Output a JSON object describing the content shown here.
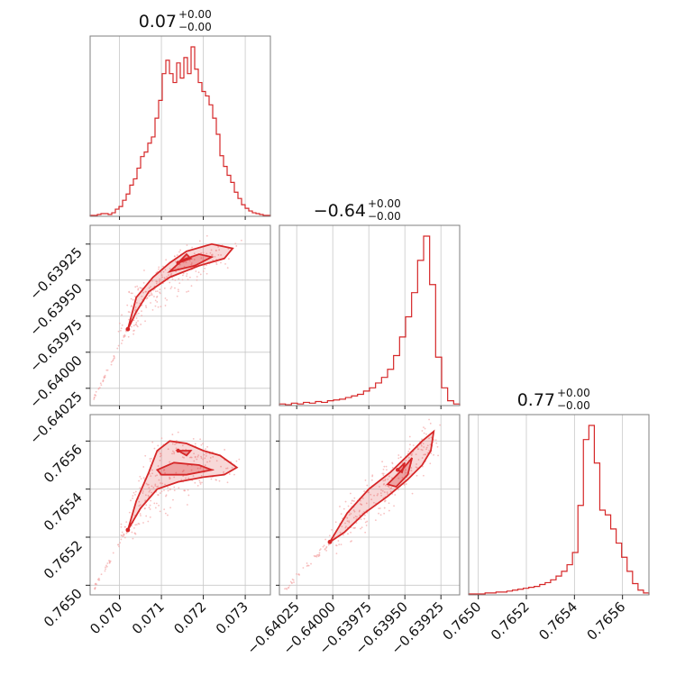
{
  "chart_data": {
    "type": "corner",
    "color": "#d62728",
    "parameters": [
      {
        "title_value": "0.07",
        "err_plus": "+0.00",
        "err_minus": "−0.00",
        "range": [
          0.0693,
          0.0736
        ],
        "ticks": [
          "0.070",
          "0.071",
          "0.072",
          "0.073"
        ],
        "tick_values": [
          0.07,
          0.071,
          0.072,
          0.073
        ]
      },
      {
        "title_value": "−0.64",
        "err_plus": "+0.00",
        "err_minus": "−0.00",
        "range": [
          -0.64037,
          -0.63912
        ],
        "ticks": [
          "−0.64025",
          "−0.64000",
          "−0.63975",
          "−0.63950",
          "−0.63925"
        ],
        "tick_values": [
          -0.64025,
          -0.64,
          -0.63975,
          -0.6395,
          -0.63925
        ]
      },
      {
        "title_value": "0.77",
        "err_plus": "+0.00",
        "err_minus": "−0.00",
        "range": [
          0.76496,
          0.76571
        ],
        "ticks": [
          "0.7650",
          "0.7652",
          "0.7654",
          "0.7656"
        ],
        "tick_values": [
          0.765,
          0.7652,
          0.7654,
          0.7656
        ]
      }
    ],
    "histograms": [
      [
        1,
        1,
        2,
        3,
        3,
        2,
        4,
        8,
        11,
        18,
        25,
        35,
        42,
        54,
        67,
        72,
        82,
        89,
        110,
        130,
        160,
        175,
        160,
        150,
        172,
        155,
        178,
        160,
        190,
        165,
        150,
        140,
        135,
        125,
        110,
        92,
        68,
        56,
        46,
        38,
        27,
        20,
        13,
        9,
        6,
        4,
        3,
        2,
        1,
        1
      ],
      [
        2,
        1,
        3,
        2,
        4,
        3,
        5,
        4,
        6,
        7,
        8,
        10,
        12,
        14,
        18,
        22,
        28,
        35,
        45,
        62,
        85,
        110,
        140,
        180,
        210,
        150,
        60,
        22,
        6,
        2
      ],
      [
        1,
        1,
        1,
        2,
        2,
        3,
        3,
        4,
        5,
        6,
        7,
        8,
        9,
        11,
        13,
        16,
        20,
        25,
        32,
        45,
        95,
        165,
        180,
        140,
        90,
        85,
        70,
        55,
        40,
        25,
        12,
        5,
        2
      ]
    ],
    "contours": {
      "p10": {
        "polygons": [
          [
            [
              0.0702,
              -0.63984
            ],
            [
              0.0704,
              -0.63962
            ],
            [
              0.0708,
              -0.63948
            ],
            [
              0.0712,
              -0.63938
            ],
            [
              0.0716,
              -0.6393
            ],
            [
              0.0722,
              -0.63925
            ],
            [
              0.0727,
              -0.63928
            ],
            [
              0.0725,
              -0.63935
            ],
            [
              0.0719,
              -0.6394
            ],
            [
              0.0712,
              -0.63948
            ],
            [
              0.0707,
              -0.63958
            ],
            [
              0.0704,
              -0.63972
            ],
            [
              0.0702,
              -0.63984
            ]
          ],
          [
            [
              0.0712,
              -0.63944
            ],
            [
              0.0715,
              -0.63936
            ],
            [
              0.0719,
              -0.63932
            ],
            [
              0.0722,
              -0.63934
            ],
            [
              0.0718,
              -0.6394
            ],
            [
              0.0712,
              -0.63944
            ]
          ],
          [
            [
              0.0714,
              -0.63938
            ],
            [
              0.0717,
              -0.63935
            ],
            [
              0.0716,
              -0.63932
            ],
            [
              0.0714,
              -0.63938
            ]
          ]
        ]
      },
      "p20": {
        "polygons": [
          [
            [
              0.0702,
              0.76523
            ],
            [
              0.0704,
              0.76535
            ],
            [
              0.0707,
              0.76547
            ],
            [
              0.0709,
              0.76556
            ],
            [
              0.0712,
              0.7656
            ],
            [
              0.0716,
              0.76559
            ],
            [
              0.072,
              0.76556
            ],
            [
              0.0724,
              0.76554
            ],
            [
              0.0728,
              0.76549
            ],
            [
              0.0725,
              0.76546
            ],
            [
              0.072,
              0.76545
            ],
            [
              0.0714,
              0.76543
            ],
            [
              0.0709,
              0.7654
            ],
            [
              0.0705,
              0.76532
            ],
            [
              0.0702,
              0.76523
            ]
          ],
          [
            [
              0.0709,
              0.76548
            ],
            [
              0.0713,
              0.76551
            ],
            [
              0.0719,
              0.7655
            ],
            [
              0.0722,
              0.76548
            ],
            [
              0.0716,
              0.76546
            ],
            [
              0.071,
              0.76546
            ],
            [
              0.0709,
              0.76548
            ]
          ],
          [
            [
              0.0714,
              0.76556
            ],
            [
              0.0717,
              0.76556
            ],
            [
              0.0716,
              0.76554
            ],
            [
              0.0714,
              0.76556
            ]
          ]
        ]
      },
      "p21": {
        "polygons": [
          [
            [
              -0.64002,
              0.76518
            ],
            [
              -0.6399,
              0.7653
            ],
            [
              -0.63975,
              0.7654
            ],
            [
              -0.6396,
              0.76547
            ],
            [
              -0.63948,
              0.76554
            ],
            [
              -0.63938,
              0.7656
            ],
            [
              -0.6393,
              0.76564
            ],
            [
              -0.63932,
              0.76556
            ],
            [
              -0.63938,
              0.7655
            ],
            [
              -0.63948,
              0.76544
            ],
            [
              -0.63962,
              0.76537
            ],
            [
              -0.63978,
              0.7653
            ],
            [
              -0.63992,
              0.76522
            ],
            [
              -0.64002,
              0.76518
            ]
          ],
          [
            [
              -0.63962,
              0.76542
            ],
            [
              -0.63952,
              0.76548
            ],
            [
              -0.63945,
              0.76553
            ],
            [
              -0.63948,
              0.76546
            ],
            [
              -0.63956,
              0.76541
            ],
            [
              -0.63962,
              0.76542
            ]
          ],
          [
            [
              -0.63955,
              0.76548
            ],
            [
              -0.6395,
              0.76551
            ],
            [
              -0.63952,
              0.76547
            ],
            [
              -0.63955,
              0.76548
            ]
          ]
        ]
      }
    }
  }
}
